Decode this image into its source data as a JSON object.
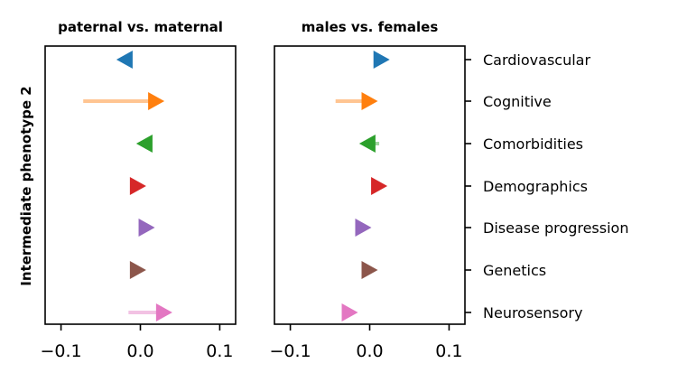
{
  "chart_data": {
    "type": "arrow-dot",
    "ylabel": "Intermediate phenotype 2",
    "categories": [
      "Cardiovascular",
      "Cognitive",
      "Comorbidities",
      "Demographics",
      "Disease progression",
      "Genetics",
      "Neurosensory"
    ],
    "colors": [
      "#1f77b4",
      "#ff7f0e",
      "#2ca02c",
      "#d62728",
      "#9467bd",
      "#8c564b",
      "#e377c2"
    ],
    "xlim": [
      -0.12,
      0.12
    ],
    "xticks": [
      -0.1,
      0.0,
      0.1
    ],
    "xtick_labels": [
      "−0.1",
      "0.0",
      "0.1"
    ],
    "panels": [
      {
        "title": "paternal vs. maternal",
        "series": [
          {
            "category": "Cardiovascular",
            "start": -0.02,
            "end": -0.02,
            "direction": "left"
          },
          {
            "category": "Cognitive",
            "start": -0.072,
            "end": 0.02,
            "direction": "right"
          },
          {
            "category": "Comorbidities",
            "start": 0.005,
            "end": 0.005,
            "direction": "left"
          },
          {
            "category": "Demographics",
            "start": -0.003,
            "end": -0.003,
            "direction": "right"
          },
          {
            "category": "Disease progression",
            "start": 0.008,
            "end": 0.008,
            "direction": "right"
          },
          {
            "category": "Genetics",
            "start": -0.003,
            "end": -0.003,
            "direction": "right"
          },
          {
            "category": "Neurosensory",
            "start": -0.015,
            "end": 0.03,
            "direction": "right"
          }
        ]
      },
      {
        "title": "males vs. females",
        "series": [
          {
            "category": "Cardiovascular",
            "start": 0.015,
            "end": 0.015,
            "direction": "right"
          },
          {
            "category": "Cognitive",
            "start": -0.043,
            "end": 0.0,
            "direction": "right"
          },
          {
            "category": "Comorbidities",
            "start": 0.012,
            "end": -0.003,
            "direction": "left"
          },
          {
            "category": "Demographics",
            "start": 0.012,
            "end": 0.012,
            "direction": "right"
          },
          {
            "category": "Disease progression",
            "start": -0.008,
            "end": -0.008,
            "direction": "right"
          },
          {
            "category": "Genetics",
            "start": 0.0,
            "end": 0.0,
            "direction": "right"
          },
          {
            "category": "Neurosensory",
            "start": -0.025,
            "end": -0.025,
            "direction": "right"
          }
        ]
      }
    ]
  }
}
